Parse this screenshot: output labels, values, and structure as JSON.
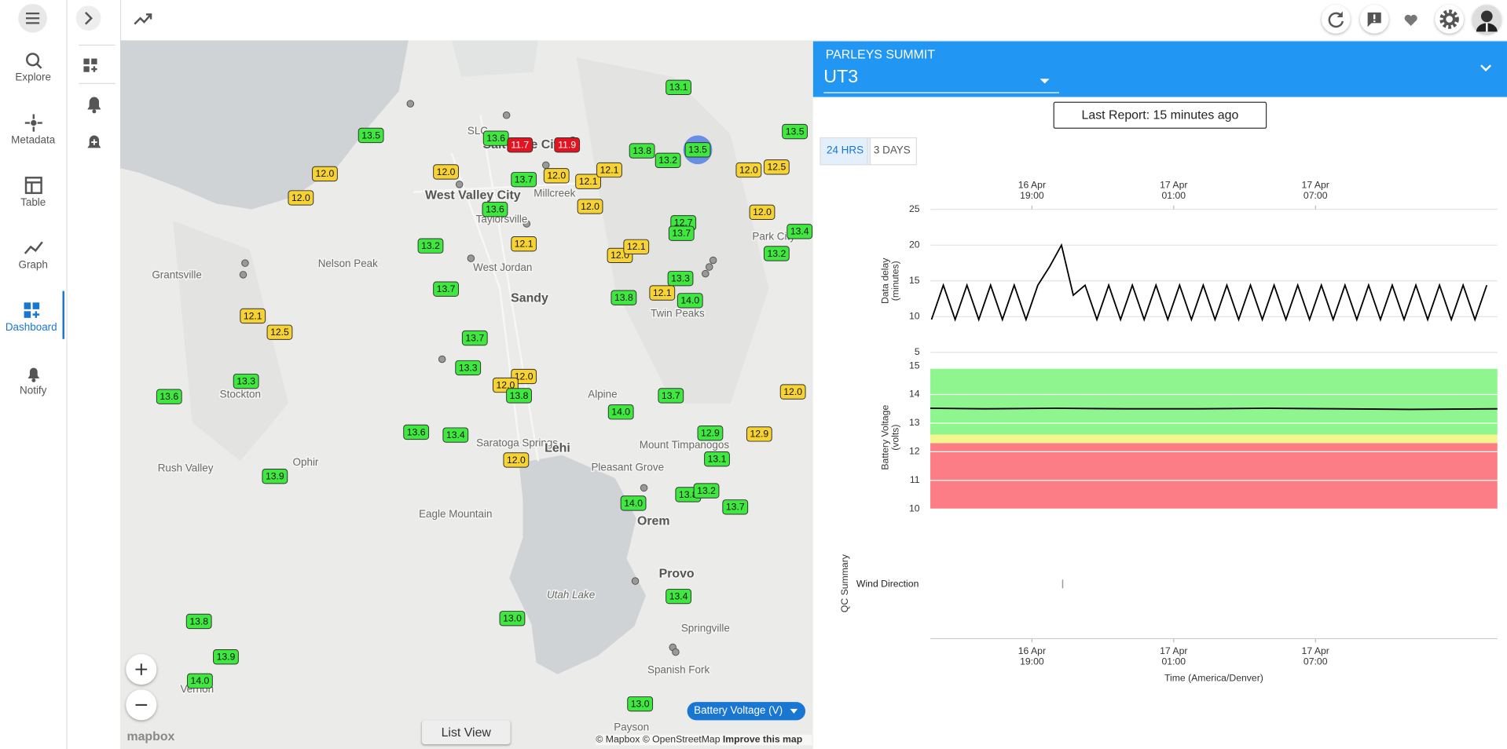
{
  "nav": {
    "items": [
      "Explore",
      "Metadata",
      "Table",
      "Graph",
      "Dashboard",
      "Notify"
    ],
    "active": 4
  },
  "map": {
    "places": [
      "West Valley City",
      "Millcreek",
      "Taylorsville",
      "West Jordan",
      "Sandy",
      "Nelson Peak",
      "Grantsville",
      "Stockton",
      "Rush Valley",
      "Ophir",
      "Saratoga Springs",
      "Lehi",
      "Alpine",
      "Pleasant Grove",
      "Mount Timpanogos",
      "Eagle Mountain",
      "Orem",
      "Provo",
      "Utah Lake",
      "Springville",
      "Spanish Fork",
      "Payson",
      "Twin Peaks",
      "Park City",
      "Salt Lake City",
      "SLC",
      "Vernon"
    ],
    "stations": [
      {
        "value": "13.5",
        "color": "#3ee83e"
      },
      {
        "value": "13.6",
        "color": "#3ee83e"
      },
      {
        "value": "11.7",
        "color": "#e3141f"
      },
      {
        "value": "11.9",
        "color": "#e3141f"
      },
      {
        "value": "13.8",
        "color": "#3ee83e"
      },
      {
        "value": "13.2",
        "color": "#3ee83e"
      },
      {
        "value": "13.5",
        "color": "#3ee83e",
        "selected": true
      },
      {
        "value": "13.1",
        "color": "#3ee83e"
      },
      {
        "value": "13.5",
        "color": "#3ee83e"
      },
      {
        "value": "12.0",
        "color": "#f6d232"
      },
      {
        "value": "12.0",
        "color": "#f6d232"
      },
      {
        "value": "12.0",
        "color": "#f6d232"
      },
      {
        "value": "13.7",
        "color": "#3ee83e"
      },
      {
        "value": "12.0",
        "color": "#f6d232"
      },
      {
        "value": "12.1",
        "color": "#f6d232"
      },
      {
        "value": "12.1",
        "color": "#f6d232"
      },
      {
        "value": "12.0",
        "color": "#f6d232"
      },
      {
        "value": "12.5",
        "color": "#f6d232"
      },
      {
        "value": "13.6",
        "color": "#3ee83e"
      },
      {
        "value": "12.0",
        "color": "#f6d232"
      },
      {
        "value": "12.0",
        "color": "#f6d232"
      },
      {
        "value": "12.7",
        "color": "#3ee83e"
      },
      {
        "value": "13.7",
        "color": "#3ee83e"
      },
      {
        "value": "13.4",
        "color": "#3ee83e"
      },
      {
        "value": "13.2",
        "color": "#3ee83e"
      },
      {
        "value": "12.1",
        "color": "#f6d232"
      },
      {
        "value": "12.0",
        "color": "#f6d232"
      },
      {
        "value": "12.1",
        "color": "#f6d232"
      },
      {
        "value": "13.2",
        "color": "#3ee83e"
      },
      {
        "value": "13.3",
        "color": "#3ee83e"
      },
      {
        "value": "13.7",
        "color": "#3ee83e"
      },
      {
        "value": "13.8",
        "color": "#3ee83e"
      },
      {
        "value": "12.1",
        "color": "#f6d232"
      },
      {
        "value": "14.0",
        "color": "#3ee83e"
      },
      {
        "value": "12.1",
        "color": "#f6d232"
      },
      {
        "value": "12.5",
        "color": "#f6d232"
      },
      {
        "value": "13.7",
        "color": "#3ee83e"
      },
      {
        "value": "13.3",
        "color": "#3ee83e"
      },
      {
        "value": "12.0",
        "color": "#f6d232"
      },
      {
        "value": "12.0",
        "color": "#f6d232"
      },
      {
        "value": "13.8",
        "color": "#3ee83e"
      },
      {
        "value": "13.3",
        "color": "#3ee83e"
      },
      {
        "value": "13.6",
        "color": "#3ee83e"
      },
      {
        "value": "13.7",
        "color": "#3ee83e"
      },
      {
        "value": "12.0",
        "color": "#f6d232"
      },
      {
        "value": "14.0",
        "color": "#3ee83e"
      },
      {
        "value": "13.6",
        "color": "#3ee83e"
      },
      {
        "value": "13.4",
        "color": "#3ee83e"
      },
      {
        "value": "12.9",
        "color": "#3ee83e"
      },
      {
        "value": "12.9",
        "color": "#f6d232"
      },
      {
        "value": "12.0",
        "color": "#f6d232"
      },
      {
        "value": "13.1",
        "color": "#3ee83e"
      },
      {
        "value": "13.9",
        "color": "#3ee83e"
      },
      {
        "value": "14.0",
        "color": "#3ee83e"
      },
      {
        "value": "13.8",
        "color": "#3ee83e"
      },
      {
        "value": "13.2",
        "color": "#3ee83e"
      },
      {
        "value": "13.7",
        "color": "#3ee83e"
      },
      {
        "value": "13.0",
        "color": "#3ee83e"
      },
      {
        "value": "13.4",
        "color": "#3ee83e"
      },
      {
        "value": "13.8",
        "color": "#3ee83e"
      },
      {
        "value": "13.9",
        "color": "#3ee83e"
      },
      {
        "value": "14.0",
        "color": "#3ee83e"
      },
      {
        "value": "13.0",
        "color": "#3ee83e"
      }
    ],
    "metric": "Battery Voltage (V)",
    "list_view": "List View",
    "logo": "mapbox",
    "attribution": [
      "© Mapbox",
      "© OpenStreetMap",
      "Improve this map"
    ]
  },
  "panel": {
    "network": "PARLEYS SUMMIT",
    "station": "UT3",
    "last_report": "Last Report: 15 minutes ago",
    "ranges": [
      "24 HRS",
      "3 DAYS"
    ],
    "active_range": 0
  },
  "chart_data": [
    {
      "type": "line",
      "ylabel": [
        "Data delay",
        "(minutes)"
      ],
      "color": "#000000",
      "x": [
        14.75,
        15.25,
        15.75,
        16.25,
        16.75,
        17.25,
        17.75,
        18.25,
        18.75,
        19.25,
        19.75,
        20.25,
        20.75,
        21.25,
        21.75,
        22.25,
        22.75,
        23.25,
        23.75,
        24.25,
        24.75,
        25.25,
        25.75,
        26.25,
        26.75,
        27.25,
        27.75,
        28.25,
        28.75,
        29.25,
        29.75,
        30.25,
        30.75,
        31.25,
        31.75,
        32.25,
        32.75,
        33.25,
        33.75,
        34.25,
        34.75,
        35.25,
        35.75,
        36.25,
        36.75,
        37.25,
        37.75,
        38.25
      ],
      "values": [
        9.6,
        14.4,
        9.6,
        14.4,
        9.6,
        14.4,
        9.6,
        14.4,
        9.6,
        14.4,
        17,
        20,
        13,
        14.4,
        9.6,
        14.4,
        9.6,
        14.4,
        9.6,
        14.4,
        9.6,
        14.4,
        9.6,
        14.4,
        9.6,
        14.4,
        9.6,
        14.4,
        9.6,
        14.4,
        9.6,
        14.4,
        9.6,
        14.4,
        9.6,
        14.4,
        9.6,
        14.4,
        9.6,
        14.4,
        9.6,
        14.4,
        9.6,
        14.4,
        9.6,
        14.4,
        9.6,
        14.4
      ],
      "xlim": [
        14.7,
        38.7
      ],
      "xticks": [
        {
          "value": 19,
          "label": [
            "16 Apr",
            "19:00"
          ]
        },
        {
          "value": 25,
          "label": [
            "17 Apr",
            "01:00"
          ]
        },
        {
          "value": 31,
          "label": [
            "17 Apr",
            "07:00"
          ]
        }
      ],
      "ylim": [
        5,
        25
      ],
      "yticks": [
        5,
        10,
        15,
        20,
        25
      ],
      "grid": true
    },
    {
      "type": "line",
      "ylabel": [
        "Battery Voltage",
        "(volts)"
      ],
      "color": "#000000",
      "x": [
        14.7,
        17,
        20,
        23,
        26,
        29,
        32,
        35,
        38.7
      ],
      "values": [
        13.52,
        13.5,
        13.52,
        13.5,
        13.5,
        13.52,
        13.5,
        13.48,
        13.5
      ],
      "xlim": [
        14.7,
        38.7
      ],
      "ylim": [
        10,
        15
      ],
      "yticks": [
        10,
        11,
        12,
        13,
        14,
        15
      ],
      "grid": true,
      "bands": [
        {
          "from": 12.6,
          "to": 14.9,
          "color": "#8ff58f"
        },
        {
          "from": 12.3,
          "to": 12.6,
          "color": "#f3f58f"
        },
        {
          "from": 10,
          "to": 12.3,
          "color": "#fd7d86"
        }
      ]
    },
    {
      "type": "qc",
      "ylabel": "QC Summary",
      "categories": [
        "Wind Direction"
      ],
      "x": [
        20.3
      ],
      "color": "#999999",
      "xlim": [
        14.7,
        38.7
      ],
      "xticks": [
        {
          "value": 19,
          "label": [
            "16 Apr",
            "19:00"
          ]
        },
        {
          "value": 25,
          "label": [
            "17 Apr",
            "01:00"
          ]
        },
        {
          "value": 31,
          "label": [
            "17 Apr",
            "07:00"
          ]
        }
      ],
      "xlabel": "Time (America/Denver)"
    }
  ]
}
